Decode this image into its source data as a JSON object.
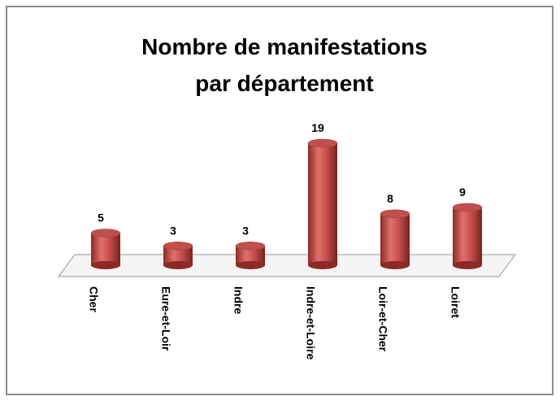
{
  "chart_data": {
    "type": "bar3d",
    "title": [
      "Nombre de manifestations",
      "par département"
    ],
    "categories": [
      "Cher",
      "Eure-et-Loir",
      "Indre",
      "Indre-et-Loire",
      "Loir-et-Cher",
      "Loiret"
    ],
    "values": [
      5,
      3,
      3,
      19,
      8,
      9
    ],
    "color": "#c0504d"
  }
}
